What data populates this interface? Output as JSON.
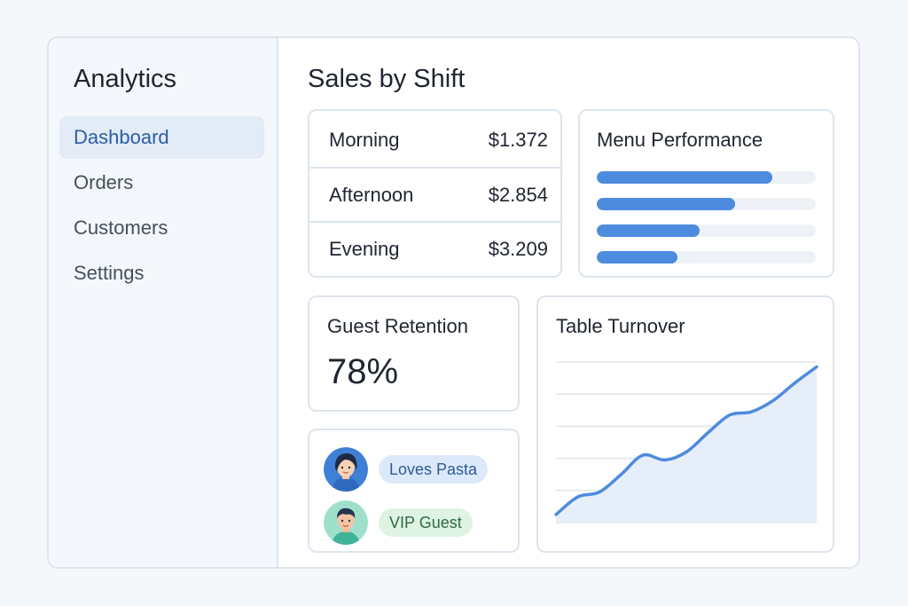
{
  "sidebar": {
    "title": "Analytics",
    "items": [
      {
        "label": "Dashboard",
        "active": true
      },
      {
        "label": "Orders",
        "active": false
      },
      {
        "label": "Customers",
        "active": false
      },
      {
        "label": "Settings",
        "active": false
      }
    ]
  },
  "main": {
    "title": "Sales by Shift",
    "shifts": [
      {
        "label": "Morning",
        "value": "$1.372"
      },
      {
        "label": "Afternoon",
        "value": "$2.854"
      },
      {
        "label": "Evening",
        "value": "$3.209"
      }
    ],
    "menu_performance": {
      "title": "Menu Performance",
      "levels": [
        0.8,
        0.63,
        0.47,
        0.37
      ],
      "color": "#4d8bde"
    },
    "retention": {
      "title": "Guest Retention",
      "value": "78%"
    },
    "guests": [
      {
        "avatar": "woman-avatar-icon",
        "tag": "Loves Pasta",
        "tag_bg": "#dce9fa",
        "tag_color": "#2e5b96"
      },
      {
        "avatar": "man-avatar-icon",
        "tag": "VIP Guest",
        "tag_bg": "#def3e4",
        "tag_color": "#2d6b43"
      }
    ],
    "table_turnover": {
      "title": "Table Turnover"
    }
  },
  "chart_data": {
    "type": "area",
    "title": "Table Turnover",
    "x": [
      0,
      1,
      2,
      3,
      4,
      5,
      6,
      7,
      8,
      9,
      10,
      11,
      12
    ],
    "values": [
      0.5,
      1.6,
      1.9,
      3.0,
      4.2,
      3.9,
      4.4,
      5.6,
      6.7,
      6.9,
      7.6,
      8.7,
      9.7
    ],
    "ylim": [
      0,
      10
    ],
    "grid": true,
    "gridlines": 6,
    "line_color": "#4d8bde",
    "fill_color": "#e6eefa"
  }
}
